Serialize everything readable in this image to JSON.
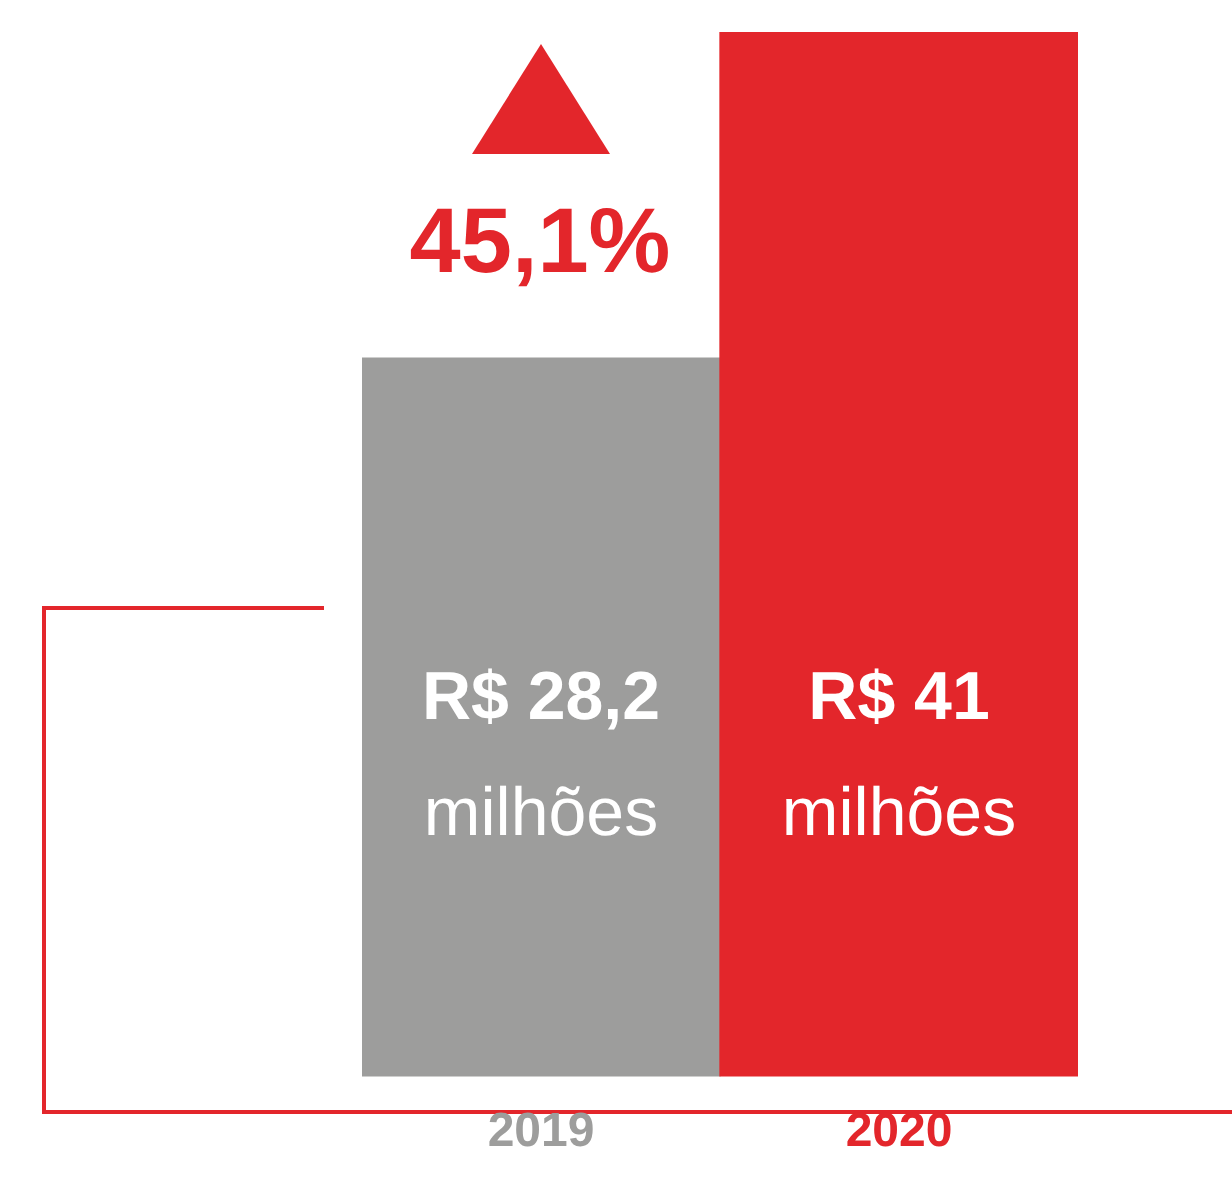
{
  "chart_data": {
    "type": "bar",
    "categories": [
      "2019",
      "2020"
    ],
    "values": [
      28.2,
      41
    ],
    "colors": [
      "#9d9d9c",
      "#e3262b"
    ],
    "value_labels": [
      "R$ 28,2\nmilhões",
      "R$ 41\nmilhões"
    ],
    "annotations": [
      "45,1%"
    ]
  }
}
